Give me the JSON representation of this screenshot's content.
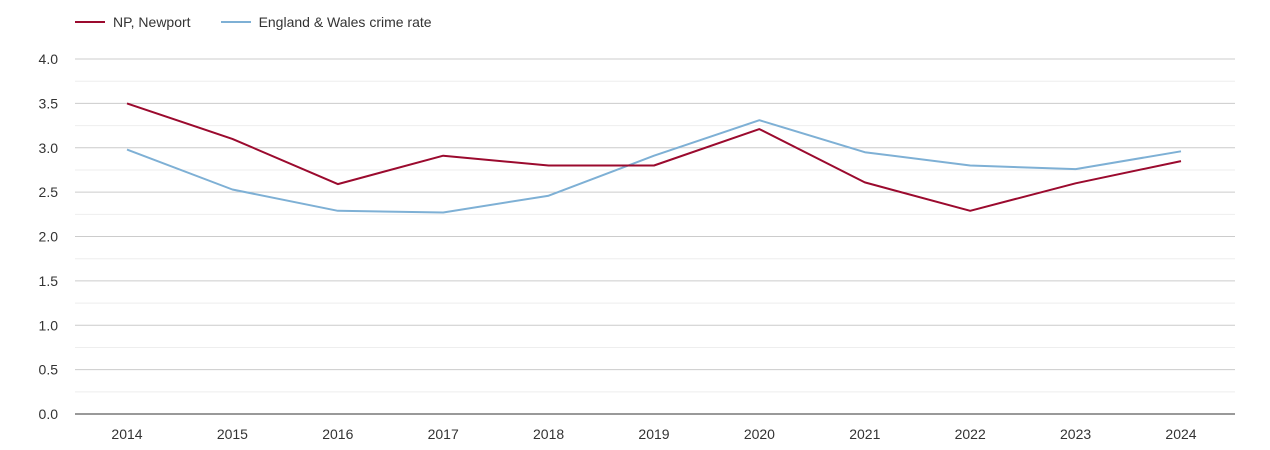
{
  "chart_data": {
    "type": "line",
    "title": "",
    "xlabel": "",
    "ylabel": "",
    "x": [
      "2014",
      "2015",
      "2016",
      "2017",
      "2018",
      "2019",
      "2020",
      "2021",
      "2022",
      "2023",
      "2024"
    ],
    "ylim": [
      0,
      4.0
    ],
    "yticks": [
      "0.0",
      "0.5",
      "1.0",
      "1.5",
      "2.0",
      "2.5",
      "3.0",
      "3.5",
      "4.0"
    ],
    "grid": true,
    "legend_position": "top-left",
    "series": [
      {
        "name": "NP, Newport",
        "color": "#9b0a2e",
        "values": [
          3.5,
          3.1,
          2.59,
          2.91,
          2.8,
          2.8,
          3.21,
          2.61,
          2.29,
          2.6,
          2.85
        ]
      },
      {
        "name": "England & Wales crime rate",
        "color": "#7eb0d5",
        "values": [
          2.98,
          2.53,
          2.29,
          2.27,
          2.46,
          2.91,
          3.31,
          2.95,
          2.8,
          2.76,
          2.96
        ]
      }
    ]
  }
}
